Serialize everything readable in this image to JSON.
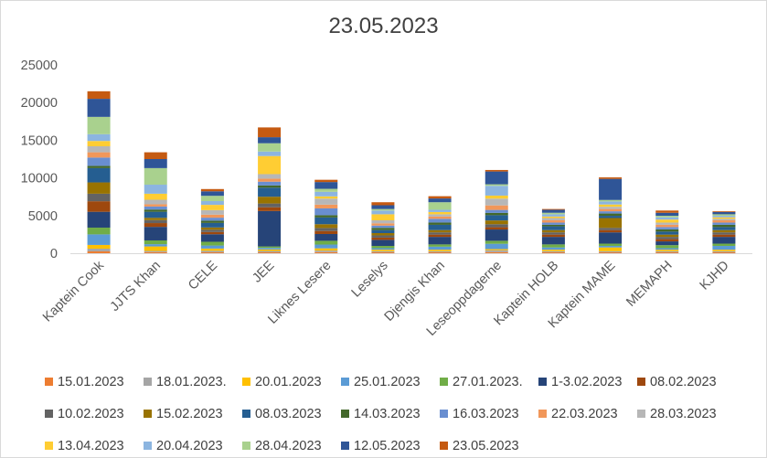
{
  "chart_data": {
    "type": "bar",
    "stacked": true,
    "title": "23.05.2023",
    "xlabel": "",
    "ylabel": "",
    "ylim": [
      0,
      25000
    ],
    "yticks": [
      0,
      5000,
      10000,
      15000,
      20000,
      25000
    ],
    "grid": false,
    "legend_position": "bottom",
    "categories": [
      "Kaptein Cook",
      "JJTS Khan",
      "CELE",
      "JEE",
      "Liknes Lesere",
      "Leselys",
      "Djengis Khan",
      "Leseoppdagerne",
      "Kaptein HOLB",
      "Kaptein MAME",
      "MEMAPH",
      "KJHD"
    ],
    "series": [
      {
        "name": "15.01.2023",
        "color": "#ED7D31",
        "values": [
          250,
          150,
          120,
          120,
          150,
          120,
          120,
          150,
          120,
          120,
          120,
          120
        ]
      },
      {
        "name": "18.01.2023.",
        "color": "#A5A5A5",
        "values": [
          350,
          150,
          200,
          180,
          200,
          150,
          150,
          250,
          150,
          150,
          150,
          150
        ]
      },
      {
        "name": "20.01.2023",
        "color": "#FFC000",
        "values": [
          500,
          600,
          300,
          200,
          300,
          200,
          200,
          150,
          200,
          500,
          200,
          200
        ]
      },
      {
        "name": "25.01.2023",
        "color": "#5B9BD5",
        "values": [
          1400,
          300,
          400,
          200,
          500,
          200,
          400,
          700,
          300,
          200,
          200,
          500
        ]
      },
      {
        "name": "27.01.2023.",
        "color": "#70AD47",
        "values": [
          900,
          500,
          500,
          200,
          500,
          300,
          300,
          400,
          400,
          300,
          400,
          300
        ]
      },
      {
        "name": "1-3.02.2023",
        "color": "#264478",
        "values": [
          2100,
          1800,
          1000,
          4700,
          900,
          800,
          1000,
          1500,
          1000,
          1500,
          500,
          900
        ]
      },
      {
        "name": "08.02.2023",
        "color": "#9E480E",
        "values": [
          1400,
          500,
          300,
          500,
          400,
          300,
          300,
          300,
          300,
          300,
          300,
          300
        ]
      },
      {
        "name": "10.02.2023",
        "color": "#636363",
        "values": [
          1000,
          400,
          300,
          500,
          400,
          300,
          300,
          400,
          300,
          300,
          300,
          300
        ]
      },
      {
        "name": "15.02.2023",
        "color": "#997300",
        "values": [
          1500,
          300,
          300,
          900,
          500,
          300,
          300,
          500,
          300,
          1300,
          300,
          300
        ]
      },
      {
        "name": "08.03.2023",
        "color": "#255E91",
        "values": [
          1900,
          800,
          600,
          1200,
          900,
          400,
          700,
          700,
          500,
          300,
          400,
          400
        ]
      },
      {
        "name": "14.03.2023",
        "color": "#43682B",
        "values": [
          300,
          300,
          300,
          300,
          300,
          300,
          300,
          300,
          200,
          300,
          300,
          300
        ]
      },
      {
        "name": "16.03.2023",
        "color": "#698ED0",
        "values": [
          1100,
          400,
          400,
          500,
          900,
          300,
          500,
          400,
          300,
          300,
          300,
          300
        ]
      },
      {
        "name": "22.03.2023",
        "color": "#F1975A",
        "values": [
          700,
          300,
          400,
          400,
          500,
          300,
          300,
          600,
          300,
          300,
          300,
          300
        ]
      },
      {
        "name": "28.03.2023",
        "color": "#B7B7B7",
        "values": [
          800,
          600,
          600,
          600,
          800,
          400,
          300,
          900,
          300,
          300,
          300,
          200
        ]
      },
      {
        "name": "13.04.2023",
        "color": "#FFCD33",
        "values": [
          700,
          800,
          700,
          2400,
          300,
          800,
          300,
          400,
          200,
          300,
          400,
          200
        ]
      },
      {
        "name": "20.04.2023",
        "color": "#8CB5E0",
        "values": [
          900,
          1200,
          500,
          600,
          600,
          500,
          300,
          1300,
          300,
          400,
          300,
          200
        ]
      },
      {
        "name": "28.04.2023",
        "color": "#A9D18E",
        "values": [
          2300,
          2200,
          700,
          1100,
          400,
          200,
          1000,
          200,
          200,
          200,
          200,
          200
        ]
      },
      {
        "name": "12.05.2023",
        "color": "#2F5597",
        "values": [
          2400,
          1200,
          600,
          800,
          900,
          500,
          500,
          1700,
          400,
          2800,
          400,
          300
        ]
      },
      {
        "name": "23.05.2023",
        "color": "#C55A11",
        "values": [
          1000,
          900,
          300,
          1300,
          300,
          400,
          300,
          200,
          100,
          200,
          300,
          100
        ]
      }
    ]
  }
}
